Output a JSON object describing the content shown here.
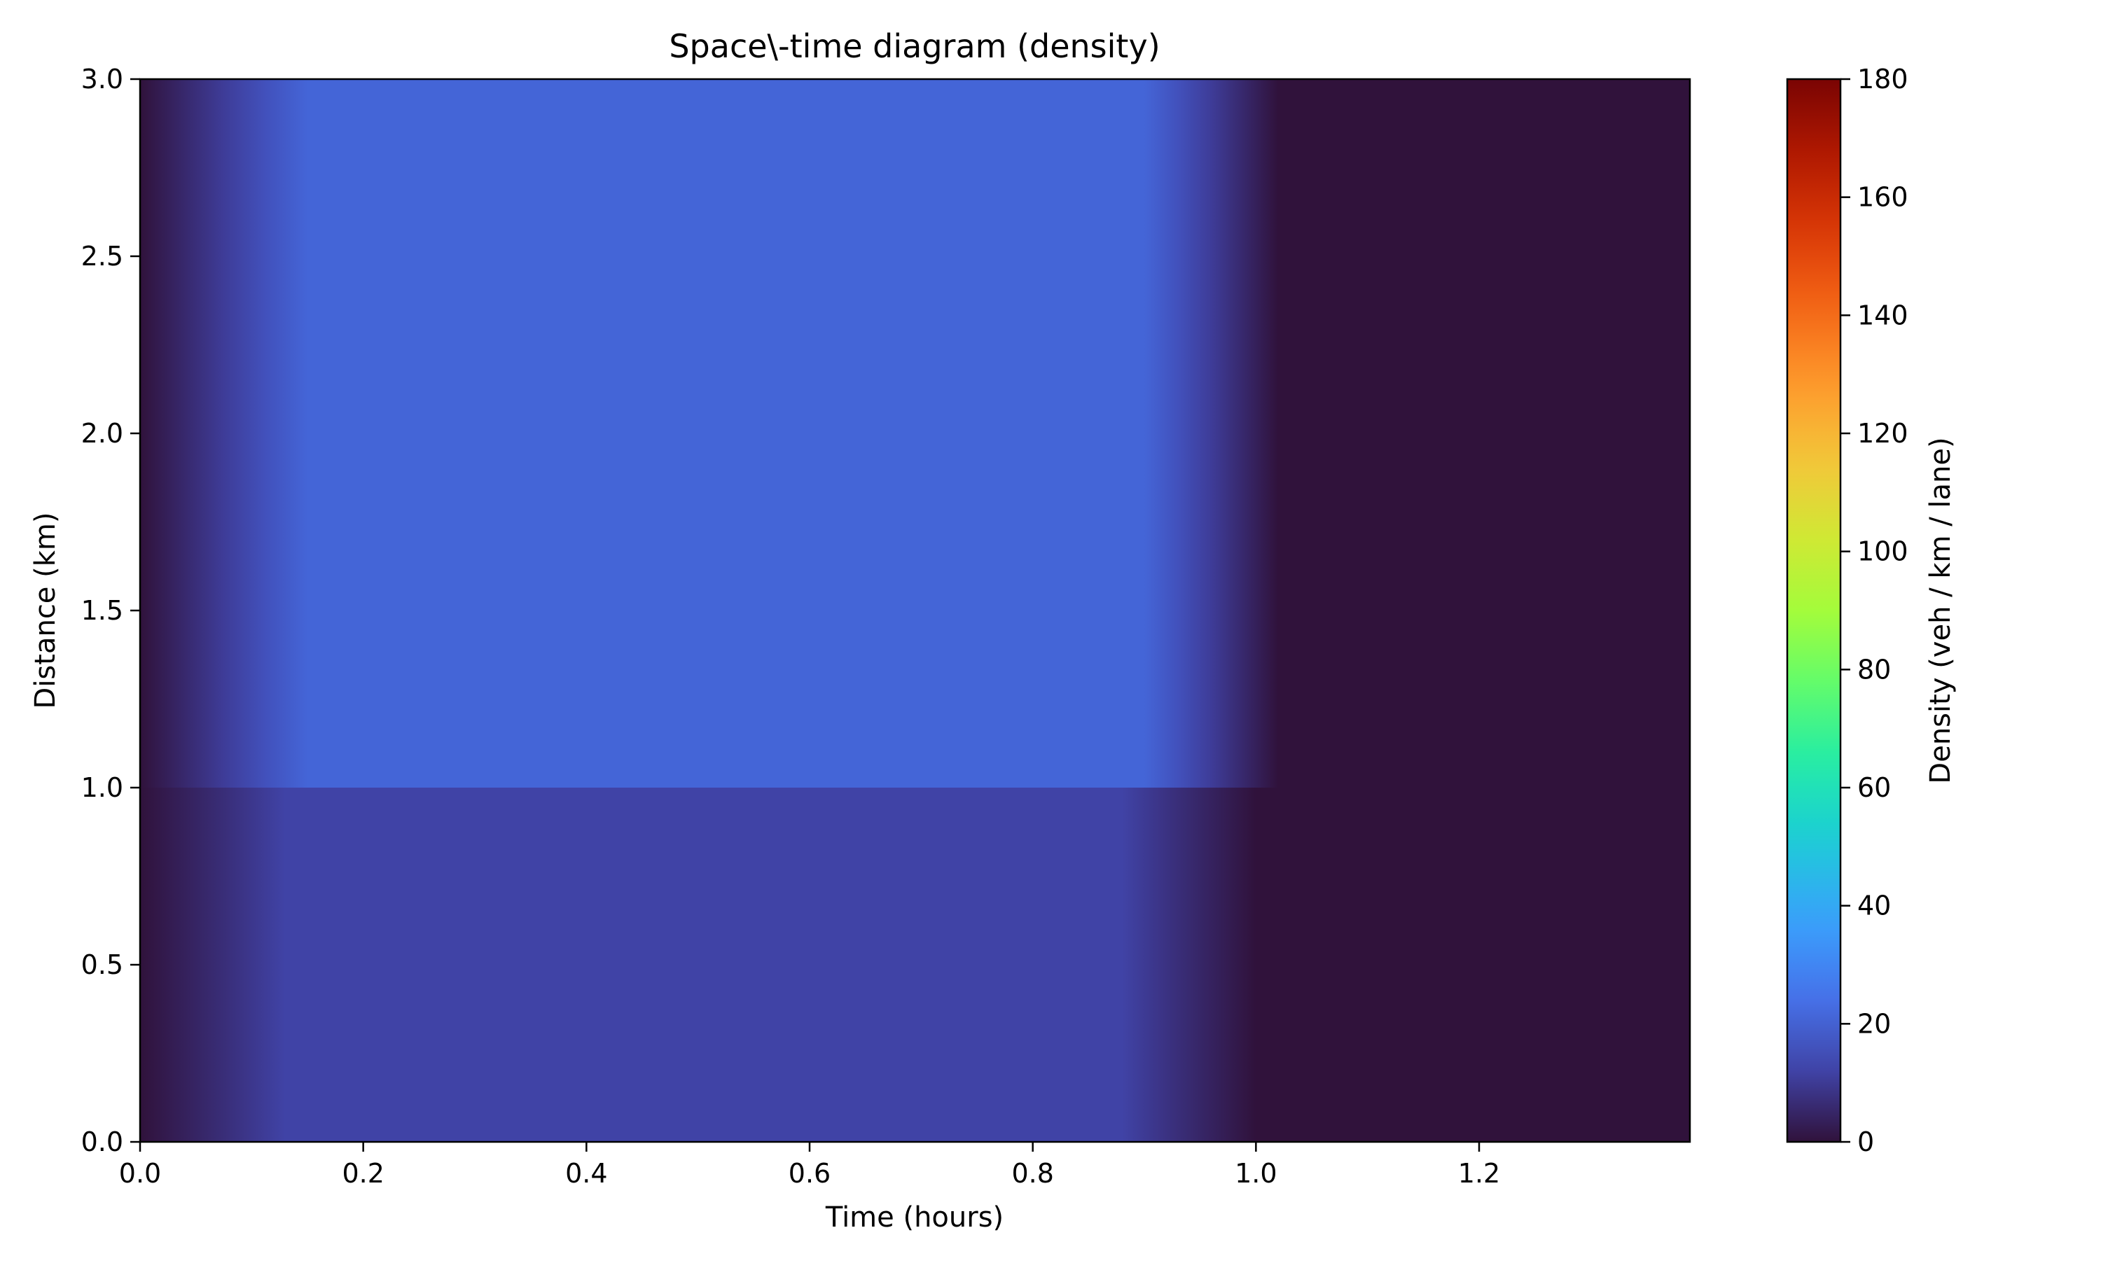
{
  "chart_data": {
    "type": "heatmap",
    "title": "Space\\-time diagram (density)",
    "xlabel": "Time (hours)",
    "ylabel": "Distance (km)",
    "colorbar_label": "Density (veh / km / lane)",
    "xlim": [
      0,
      1.3889
    ],
    "ylim": [
      0,
      3.0
    ],
    "clim": [
      0,
      180
    ],
    "colormap": "turbo",
    "x_ticks": [
      0.0,
      0.2,
      0.4,
      0.6,
      0.8,
      1.0,
      1.2
    ],
    "x_tick_labels": [
      "0.0",
      "0.2",
      "0.4",
      "0.6",
      "0.8",
      "1.0",
      "1.2"
    ],
    "y_ticks": [
      0.0,
      0.5,
      1.0,
      1.5,
      2.0,
      2.5,
      3.0
    ],
    "y_tick_labels": [
      "0.0",
      "0.5",
      "1.0",
      "1.5",
      "2.0",
      "2.5",
      "3.0"
    ],
    "colorbar_ticks": [
      0,
      20,
      40,
      60,
      80,
      100,
      120,
      140,
      160,
      180
    ],
    "colorbar_tick_labels": [
      "0",
      "20",
      "40",
      "60",
      "80",
      "100",
      "120",
      "140",
      "160",
      "180"
    ],
    "regions": [
      {
        "y_range": [
          0.0,
          1.0
        ],
        "plateau_density": 12,
        "ramp_up": [
          0.0,
          0.13
        ],
        "ramp_down": [
          0.88,
          1.0
        ]
      },
      {
        "y_range": [
          1.0,
          3.0
        ],
        "plateau_density": 21,
        "ramp_up": [
          0.0,
          0.15
        ],
        "ramp_down": [
          0.9,
          1.02
        ]
      }
    ],
    "grid": false
  }
}
